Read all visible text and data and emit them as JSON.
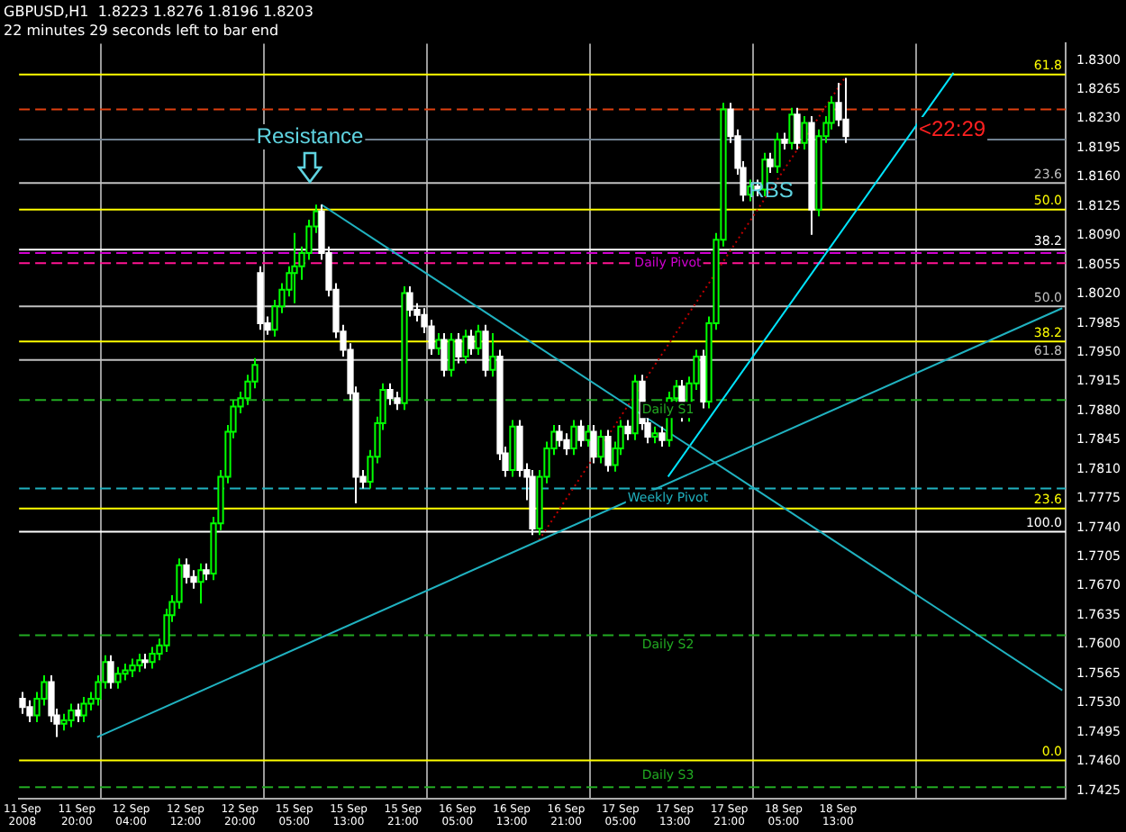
{
  "chart_data": {
    "type": "candlestick",
    "title": "GBPUSD,H1  1.8223 1.8276 1.8196 1.8203",
    "subtitle": "22 minutes 29 seconds left to bar end",
    "categories": [
      "11 Sep 2008",
      null,
      null,
      null,
      null,
      null,
      null,
      null,
      "11 Sep 20:00",
      null,
      null,
      null,
      null,
      null,
      null,
      null,
      "12 Sep 04:00",
      null,
      null,
      null,
      null,
      null,
      null,
      null,
      "12 Sep 12:00",
      null,
      null,
      null,
      null,
      null,
      null,
      null,
      "12 Sep 20:00",
      null,
      null,
      null,
      null,
      null,
      null,
      null,
      "15 Sep 05:00",
      null,
      null,
      null,
      null,
      null,
      null,
      null,
      "15 Sep 13:00",
      null,
      null,
      null,
      null,
      null,
      null,
      null,
      "15 Sep 21:00",
      null,
      null,
      null,
      null,
      null,
      null,
      null,
      "16 Sep 05:00",
      null,
      null,
      null,
      null,
      null,
      null,
      null,
      "16 Sep 13:00",
      null,
      null,
      null,
      null,
      null,
      null,
      null,
      "16 Sep 21:00",
      null,
      null,
      null,
      null,
      null,
      null,
      null,
      "17 Sep 05:00",
      null,
      null,
      null,
      null,
      null,
      null,
      null,
      "17 Sep 13:00",
      null,
      null,
      null,
      null,
      null,
      null,
      null,
      "17 Sep 21:00",
      null,
      null,
      null,
      null,
      null,
      null,
      null,
      "18 Sep 05:00",
      null,
      null,
      null,
      null,
      null,
      null,
      null,
      "18 Sep 13:00",
      null,
      null,
      null,
      null,
      null,
      null,
      null,
      null,
      null,
      null,
      null,
      null,
      null,
      null,
      null,
      null,
      null,
      null,
      null,
      null,
      null,
      null,
      null,
      null,
      null,
      null,
      null,
      null,
      null,
      null,
      null,
      null,
      null
    ],
    "ohlc": [
      [
        1.7535,
        1.7543,
        1.7517,
        1.7525
      ],
      [
        1.7525,
        1.7533,
        1.7507,
        1.7515
      ],
      [
        1.7515,
        1.7543,
        1.7507,
        1.7535
      ],
      [
        1.7535,
        1.7563,
        1.7527,
        1.7555
      ],
      [
        1.7555,
        1.7563,
        1.7507,
        1.7515
      ],
      [
        1.7515,
        1.7523,
        1.7489,
        1.7505
      ],
      [
        1.7505,
        1.7517,
        1.7497,
        1.7509
      ],
      [
        1.7509,
        1.7529,
        1.7501,
        1.7521
      ],
      [
        1.7521,
        1.7529,
        1.7507,
        1.7515
      ],
      [
        1.7515,
        1.7537,
        1.7507,
        1.7529
      ],
      [
        1.7529,
        1.7543,
        1.7521,
        1.7535
      ],
      [
        1.7535,
        1.7563,
        1.7527,
        1.7555
      ],
      [
        1.7555,
        1.7587,
        1.7547,
        1.7579
      ],
      [
        1.7579,
        1.7587,
        1.7547,
        1.7555
      ],
      [
        1.7555,
        1.7573,
        1.7547,
        1.7565
      ],
      [
        1.7565,
        1.7577,
        1.7557,
        1.7569
      ],
      [
        1.7569,
        1.7583,
        1.7561,
        1.7575
      ],
      [
        1.7575,
        1.7589,
        1.7567,
        1.7581
      ],
      [
        1.7581,
        1.7589,
        1.7571,
        1.7579
      ],
      [
        1.7579,
        1.7597,
        1.7571,
        1.7589
      ],
      [
        1.7589,
        1.7607,
        1.7581,
        1.7599
      ],
      [
        1.7599,
        1.7643,
        1.7591,
        1.7635
      ],
      [
        1.7635,
        1.7659,
        1.7627,
        1.7651
      ],
      [
        1.7651,
        1.7703,
        1.7643,
        1.7695
      ],
      [
        1.7695,
        1.7703,
        1.7673,
        1.7681
      ],
      [
        1.7681,
        1.7689,
        1.7667,
        1.7675
      ],
      [
        1.7675,
        1.7697,
        1.7649,
        1.7689
      ],
      [
        1.7689,
        1.7697,
        1.7677,
        1.7685
      ],
      [
        1.7685,
        1.7753,
        1.7677,
        1.7745
      ],
      [
        1.7745,
        1.7809,
        1.7737,
        1.7801
      ],
      [
        1.7801,
        1.7863,
        1.7793,
        1.7855
      ],
      [
        1.7855,
        1.7893,
        1.7847,
        1.7885
      ],
      [
        1.7885,
        1.7903,
        1.7877,
        1.7895
      ],
      [
        1.7895,
        1.7923,
        1.7887,
        1.7915
      ],
      [
        1.7915,
        1.7943,
        1.7907,
        1.7935
      ],
      [
        1.8045,
        1.8053,
        1.7977,
        1.7985
      ],
      [
        1.7985,
        1.7993,
        1.7971,
        1.7977
      ],
      [
        1.7977,
        1.8013,
        1.7969,
        1.8005
      ],
      [
        1.8005,
        1.8033,
        1.7997,
        1.8025
      ],
      [
        1.8025,
        1.8053,
        1.8017,
        1.8045
      ],
      [
        1.8045,
        1.8093,
        1.8009,
        1.8053
      ],
      [
        1.8053,
        1.8077,
        1.8037,
        1.8069
      ],
      [
        1.8069,
        1.8109,
        1.8061,
        1.8101
      ],
      [
        1.8101,
        1.8127,
        1.8093,
        1.8119
      ],
      [
        1.8119,
        1.8127,
        1.8061,
        1.8069
      ],
      [
        1.8069,
        1.8077,
        1.8017,
        1.8025
      ],
      [
        1.8025,
        1.8033,
        1.7967,
        1.7975
      ],
      [
        1.7975,
        1.7983,
        1.7945,
        1.7953
      ],
      [
        1.7953,
        1.7961,
        1.7893,
        1.7901
      ],
      [
        1.7901,
        1.7909,
        1.7769,
        1.7801
      ],
      [
        1.7801,
        1.7809,
        1.7787,
        1.7795
      ],
      [
        1.7795,
        1.7833,
        1.7787,
        1.7825
      ],
      [
        1.7825,
        1.7873,
        1.7817,
        1.7865
      ],
      [
        1.7865,
        1.7913,
        1.7857,
        1.7905
      ],
      [
        1.7905,
        1.7913,
        1.7887,
        1.7895
      ],
      [
        1.7895,
        1.7903,
        1.7881,
        1.7889
      ],
      [
        1.7889,
        1.8029,
        1.7881,
        1.8021
      ],
      [
        1.8021,
        1.8029,
        1.7993,
        1.8001
      ],
      [
        1.8001,
        1.8009,
        1.7987,
        1.7995
      ],
      [
        1.7995,
        1.8003,
        1.7973,
        1.7981
      ],
      [
        1.7981,
        1.7989,
        1.7947,
        1.7955
      ],
      [
        1.7955,
        1.7973,
        1.7947,
        1.7965
      ],
      [
        1.7965,
        1.7973,
        1.7921,
        1.7929
      ],
      [
        1.7929,
        1.7973,
        1.7921,
        1.7965
      ],
      [
        1.7965,
        1.7973,
        1.7937,
        1.7945
      ],
      [
        1.7945,
        1.7977,
        1.7937,
        1.7969
      ],
      [
        1.7969,
        1.7977,
        1.7947,
        1.7955
      ],
      [
        1.7955,
        1.7983,
        1.7947,
        1.7975
      ],
      [
        1.7975,
        1.7983,
        1.7921,
        1.7929
      ],
      [
        1.7929,
        1.7973,
        1.7921,
        1.7945
      ],
      [
        1.7945,
        1.7953,
        1.7821,
        1.7829
      ],
      [
        1.7829,
        1.7837,
        1.7801,
        1.7809
      ],
      [
        1.7809,
        1.7869,
        1.7801,
        1.7861
      ],
      [
        1.7861,
        1.7869,
        1.7801,
        1.7809
      ],
      [
        1.7809,
        1.7817,
        1.7773,
        1.7801
      ],
      [
        1.7801,
        1.7809,
        1.7731,
        1.7739
      ],
      [
        1.7739,
        1.7809,
        1.7731,
        1.7801
      ],
      [
        1.7801,
        1.7843,
        1.7793,
        1.7835
      ],
      [
        1.7835,
        1.7863,
        1.7827,
        1.7855
      ],
      [
        1.7855,
        1.7863,
        1.7837,
        1.7845
      ],
      [
        1.7845,
        1.7853,
        1.7827,
        1.7835
      ],
      [
        1.7835,
        1.7869,
        1.7827,
        1.7861
      ],
      [
        1.7861,
        1.7869,
        1.7837,
        1.7845
      ],
      [
        1.7845,
        1.7863,
        1.7837,
        1.7855
      ],
      [
        1.7855,
        1.7863,
        1.7817,
        1.7825
      ],
      [
        1.7825,
        1.7857,
        1.7817,
        1.7849
      ],
      [
        1.7849,
        1.7857,
        1.7807,
        1.7815
      ],
      [
        1.7815,
        1.7843,
        1.7807,
        1.7835
      ],
      [
        1.7835,
        1.7869,
        1.7827,
        1.7861
      ],
      [
        1.7861,
        1.7869,
        1.7845,
        1.7853
      ],
      [
        1.7853,
        1.7923,
        1.7845,
        1.7915
      ],
      [
        1.7915,
        1.7923,
        1.7857,
        1.7865
      ],
      [
        1.7865,
        1.7873,
        1.7841,
        1.7849
      ],
      [
        1.7849,
        1.7861,
        1.7841,
        1.7853
      ],
      [
        1.7853,
        1.7861,
        1.7837,
        1.7845
      ],
      [
        1.7845,
        1.7903,
        1.7837,
        1.7895
      ],
      [
        1.7895,
        1.7917,
        1.7887,
        1.7909
      ],
      [
        1.7909,
        1.7917,
        1.7867,
        1.7875
      ],
      [
        1.7875,
        1.7921,
        1.7867,
        1.7913
      ],
      [
        1.7913,
        1.7953,
        1.7905,
        1.7945
      ],
      [
        1.7945,
        1.7953,
        1.7883,
        1.7891
      ],
      [
        1.7891,
        1.7993,
        1.7883,
        1.7985
      ],
      [
        1.7985,
        1.8093,
        1.7977,
        1.8085
      ],
      [
        1.8085,
        1.8249,
        1.8077,
        1.8241
      ],
      [
        1.8241,
        1.8249,
        1.8201,
        1.8209
      ],
      [
        1.8209,
        1.8217,
        1.8163,
        1.8171
      ],
      [
        1.8171,
        1.8179,
        1.8131,
        1.8139
      ],
      [
        1.8139,
        1.8157,
        1.8131,
        1.8149
      ],
      [
        1.8149,
        1.8157,
        1.8137,
        1.8145
      ],
      [
        1.8145,
        1.8189,
        1.8137,
        1.8181
      ],
      [
        1.8181,
        1.8189,
        1.8165,
        1.8173
      ],
      [
        1.8173,
        1.8213,
        1.8165,
        1.8205
      ],
      [
        1.8205,
        1.8213,
        1.8193,
        1.8201
      ],
      [
        1.8201,
        1.8243,
        1.8193,
        1.8235
      ],
      [
        1.8235,
        1.8243,
        1.8193,
        1.8201
      ],
      [
        1.8201,
        1.8233,
        1.8193,
        1.8225
      ],
      [
        1.8225,
        1.8233,
        1.8091,
        1.8121
      ],
      [
        1.8121,
        1.8217,
        1.8113,
        1.8209
      ],
      [
        1.8209,
        1.8233,
        1.8201,
        1.8225
      ],
      [
        1.8225,
        1.8257,
        1.8217,
        1.8249
      ],
      [
        1.8249,
        1.8273,
        1.8221,
        1.8229
      ],
      [
        1.8229,
        1.8279,
        1.8201,
        1.8209
      ],
      null,
      null,
      null,
      null,
      null,
      null,
      null,
      null,
      null,
      null,
      null,
      null,
      null,
      null,
      null,
      null,
      null,
      null,
      null,
      null,
      null,
      null,
      null,
      null,
      null,
      null,
      null,
      null,
      null,
      null,
      null,
      null
    ],
    "series": [
      {
        "type": "line",
        "color": "#20b2c0",
        "line_style": "solid",
        "values": [
          null,
          null,
          null,
          null,
          null,
          null,
          null,
          null,
          null,
          null,
          null,
          null,
          null,
          null,
          null,
          null,
          null,
          null,
          null,
          null,
          null,
          null,
          null,
          null,
          null,
          null,
          null,
          null,
          null,
          null,
          null,
          null,
          null,
          null,
          null,
          null,
          null,
          null,
          null,
          null,
          null,
          null,
          null,
          null,
          1.8127,
          null,
          null,
          null,
          null,
          null,
          null,
          null,
          null,
          null,
          null,
          null,
          null,
          null,
          null,
          null,
          null,
          null,
          null,
          null,
          null,
          null,
          null,
          null,
          null,
          null,
          null,
          null,
          null,
          null,
          null,
          null,
          null,
          null,
          null,
          null,
          null,
          null,
          null,
          null,
          null,
          null,
          null,
          null,
          null,
          null,
          null,
          null,
          null,
          null,
          null,
          null,
          null,
          null,
          null,
          null,
          null,
          null,
          null,
          null,
          null,
          null,
          null,
          null,
          null,
          null,
          null,
          null,
          null,
          null,
          null,
          null,
          null,
          null,
          null,
          null,
          null,
          null,
          null,
          null,
          null,
          null,
          null,
          null,
          null,
          null,
          null,
          null,
          null,
          null,
          null,
          null,
          null,
          null,
          null,
          null,
          null,
          null,
          null,
          null,
          null,
          null,
          null,
          null,
          null,
          null,
          null,
          null,
          null,
          1.7545
        ]
      },
      {
        "type": "line",
        "color": "#20b2c0",
        "line_style": "solid",
        "values": [
          null,
          null,
          null,
          null,
          null,
          null,
          null,
          null,
          null,
          null,
          null,
          1.7489,
          null,
          null,
          null,
          null,
          null,
          null,
          null,
          null,
          null,
          null,
          null,
          null,
          null,
          null,
          null,
          null,
          null,
          null,
          null,
          null,
          null,
          null,
          null,
          null,
          null,
          null,
          null,
          null,
          null,
          null,
          null,
          null,
          null,
          null,
          null,
          null,
          null,
          null,
          null,
          null,
          null,
          null,
          null,
          null,
          null,
          null,
          null,
          null,
          null,
          null,
          null,
          null,
          null,
          null,
          null,
          null,
          null,
          null,
          null,
          null,
          null,
          null,
          null,
          null,
          null,
          null,
          null,
          null,
          null,
          null,
          null,
          null,
          null,
          null,
          null,
          null,
          null,
          null,
          null,
          null,
          null,
          null,
          null,
          null,
          null,
          null,
          null,
          null,
          null,
          null,
          null,
          null,
          null,
          null,
          null,
          null,
          null,
          null,
          null,
          null,
          null,
          null,
          null,
          null,
          null,
          null,
          null,
          null,
          null,
          null,
          null,
          null,
          null,
          null,
          null,
          null,
          null,
          null,
          null,
          null,
          null,
          null,
          null,
          null,
          null,
          null,
          null,
          null,
          null,
          null,
          null,
          null,
          null,
          null,
          null,
          null,
          null,
          null,
          null,
          null,
          null,
          1.8003
        ]
      },
      {
        "type": "line",
        "color": "#00e5ff",
        "line_style": "solid",
        "values": [
          null,
          null,
          null,
          null,
          null,
          null,
          null,
          null,
          null,
          null,
          null,
          null,
          null,
          null,
          null,
          null,
          null,
          null,
          null,
          null,
          null,
          null,
          null,
          null,
          null,
          null,
          null,
          null,
          null,
          null,
          null,
          null,
          null,
          null,
          null,
          null,
          null,
          null,
          null,
          null,
          null,
          null,
          null,
          null,
          null,
          null,
          null,
          null,
          null,
          null,
          null,
          null,
          null,
          null,
          null,
          null,
          null,
          null,
          null,
          null,
          null,
          null,
          null,
          null,
          null,
          null,
          null,
          null,
          null,
          null,
          null,
          null,
          null,
          null,
          null,
          null,
          null,
          null,
          null,
          null,
          null,
          null,
          null,
          null,
          null,
          null,
          null,
          null,
          null,
          null,
          null,
          null,
          null,
          null,
          null,
          1.7801,
          null,
          null,
          null,
          null,
          null,
          null,
          null,
          null,
          null,
          null,
          null,
          null,
          null,
          null,
          null,
          null,
          null,
          null,
          null,
          null,
          null,
          null,
          null,
          null,
          null,
          null,
          null,
          null,
          null,
          null,
          null,
          null,
          null,
          null,
          null,
          null,
          null,
          null,
          null,
          null,
          null,
          1.8285,
          null,
          null,
          null,
          null,
          null,
          null,
          null,
          null,
          null,
          null,
          null,
          null,
          null,
          null,
          null,
          null
        ]
      },
      {
        "type": "line",
        "color": "#c00000",
        "line_style": "dotted",
        "values": [
          null,
          null,
          null,
          null,
          null,
          null,
          null,
          null,
          null,
          null,
          null,
          null,
          null,
          null,
          null,
          null,
          null,
          null,
          null,
          null,
          null,
          null,
          null,
          null,
          null,
          null,
          null,
          null,
          null,
          null,
          null,
          null,
          null,
          null,
          null,
          null,
          null,
          null,
          null,
          null,
          null,
          null,
          null,
          null,
          null,
          null,
          null,
          null,
          null,
          null,
          null,
          null,
          null,
          null,
          null,
          null,
          null,
          null,
          null,
          null,
          null,
          null,
          null,
          null,
          null,
          null,
          null,
          null,
          null,
          null,
          null,
          null,
          null,
          null,
          null,
          null,
          1.7725,
          null,
          null,
          null,
          null,
          null,
          null,
          null,
          null,
          null,
          null,
          null,
          null,
          null,
          null,
          null,
          null,
          null,
          null,
          null,
          null,
          null,
          null,
          null,
          null,
          null,
          null,
          null,
          null,
          null,
          null,
          null,
          null,
          null,
          null,
          null,
          null,
          null,
          null,
          null,
          null,
          null,
          null,
          null,
          null,
          1.8279,
          null,
          null,
          null,
          null,
          null,
          null,
          null,
          null,
          null,
          null,
          null,
          null,
          null,
          null,
          null,
          null,
          null,
          null,
          null,
          null,
          null,
          null,
          null,
          null,
          null,
          null,
          null,
          null,
          null,
          null,
          null,
          null
        ]
      }
    ],
    "ylim": [
      1.7415,
      1.832
    ],
    "yticks": [
      1.7425,
      {
        "value": 1.746,
        "label": "1.7460"
      },
      1.7495,
      {
        "value": 1.753,
        "label": "1.7530"
      },
      1.7565,
      {
        "value": 1.76,
        "label": "1.7600"
      },
      1.7635,
      {
        "value": 1.767,
        "label": "1.7670"
      },
      1.7705,
      {
        "value": 1.774,
        "label": "1.7740"
      },
      1.7775,
      {
        "value": 1.781,
        "label": "1.7810"
      },
      1.7845,
      {
        "value": 1.788,
        "label": "1.7880"
      },
      1.7915,
      {
        "value": 1.795,
        "label": "1.7950"
      },
      1.7985,
      {
        "value": 1.802,
        "label": "1.8020"
      },
      1.8055,
      {
        "value": 1.809,
        "label": "1.8090"
      },
      1.8125,
      {
        "value": 1.816,
        "label": "1.8160"
      },
      1.8195,
      {
        "value": 1.823,
        "label": "1.8230"
      },
      1.8265,
      {
        "value": 1.83,
        "label": "1.8300"
      }
    ],
    "ref_lines": [
      {
        "axis": "y",
        "value": 1.8283,
        "color": "#ffff00",
        "line_style": "solid"
      },
      {
        "axis": "y",
        "value": 1.8241,
        "color": "#e04010",
        "line_style": "dashed"
      },
      {
        "axis": "y",
        "value": 1.8205,
        "color": "#708090",
        "line_style": "solid"
      },
      {
        "axis": "y",
        "value": 1.8153,
        "color": "#c0c0c0",
        "line_style": "solid"
      },
      {
        "axis": "y",
        "value": 1.8121,
        "color": "#ffff00",
        "line_style": "solid"
      },
      {
        "axis": "y",
        "value": 1.8073,
        "color": "#ffffff",
        "line_style": "solid"
      },
      {
        "axis": "y",
        "value": 1.8069,
        "label": "Daily Pivot",
        "color": "#d000d0",
        "line_style": "dashed"
      },
      {
        "axis": "y",
        "value": 1.8057,
        "color": "#ff1493",
        "line_style": "dashed"
      },
      {
        "axis": "y",
        "value": 1.8005,
        "color": "#c0c0c0",
        "line_style": "solid"
      },
      {
        "axis": "y",
        "value": 1.7963,
        "color": "#ffff00",
        "line_style": "solid"
      },
      {
        "axis": "y",
        "value": 1.7941,
        "color": "#c0c0c0",
        "line_style": "solid"
      },
      {
        "axis": "y",
        "value": 1.7893,
        "label": "Daily S1",
        "color": "#22aa22",
        "line_style": "dashed"
      },
      {
        "axis": "y",
        "value": 1.7787,
        "label": "Weekly Pivot",
        "color": "#20b2c0",
        "line_style": "dashed"
      },
      {
        "axis": "y",
        "value": 1.7763,
        "color": "#ffff00",
        "line_style": "solid"
      },
      {
        "axis": "y",
        "value": 1.7735,
        "color": "#ffffff",
        "line_style": "solid"
      },
      {
        "axis": "y",
        "value": 1.7611,
        "label": "Daily S2",
        "color": "#22aa22",
        "line_style": "dashed"
      },
      {
        "axis": "y",
        "value": 1.7461,
        "color": "#ffff00",
        "line_style": "solid"
      },
      {
        "axis": "y",
        "value": 1.7429,
        "label": "Daily S3",
        "color": "#22aa22",
        "line_style": "dashed"
      }
    ],
    "annotations": [
      "Resistance",
      "RBS",
      "<22:29",
      {
        "text": "61.8",
        "y": 1.8283
      },
      {
        "text": "23.6",
        "y": 1.8153
      },
      {
        "text": "50.0",
        "y": 1.8121
      },
      {
        "text": "38.2",
        "y": 1.8073
      },
      {
        "text": "50.0",
        "y": 1.8005
      },
      {
        "text": "38.2",
        "y": 1.7963
      },
      {
        "text": "61.8",
        "y": 1.7941
      },
      {
        "text": "23.6",
        "y": 1.7763
      },
      {
        "text": "100.0",
        "y": 1.7735
      },
      {
        "text": "0.0",
        "y": 1.7461
      }
    ],
    "grid": "x",
    "legend": false
  }
}
